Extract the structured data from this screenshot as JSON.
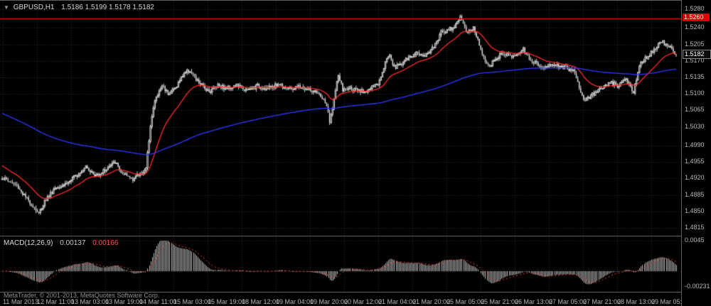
{
  "header": {
    "symbol": "GBPUSD,H1",
    "quote": "1.5186 1.5199 1.5178 1.5182"
  },
  "icons": {
    "chart_shift_marker": "▼"
  },
  "badges": {
    "resistance": "1.5260",
    "last": "1.5182"
  },
  "macd_panel": {
    "title": "MACD(12,26,9)",
    "value_main": "0.00137",
    "value_signal": "0.00166"
  },
  "footer": {
    "copyright": "MetaTrader, © 2001-2013, MetaQuotes Software Corp."
  },
  "chart_data": {
    "type": "candlestick",
    "title": "GBPUSD,H1",
    "ohlc_display": {
      "open": 1.5186,
      "high": 1.5199,
      "low": 1.5178,
      "close": 1.5182
    },
    "y_tick_labels": [
      "1.5280",
      "1.5240",
      "1.5205",
      "1.5170",
      "1.5135",
      "1.5100",
      "1.5065",
      "1.5030",
      "1.4990",
      "1.4955",
      "1.4920",
      "1.4885",
      "1.4850",
      "1.4815"
    ],
    "x_tick_labels": [
      "11 Mar 2013",
      "12 Mar 11:00",
      "13 Mar 03:00",
      "13 Mar 19:00",
      "14 Mar 11:00",
      "15 Mar 03:00",
      "15 Mar 19:00",
      "18 Mar 12:00",
      "19 Mar 04:00",
      "19 Mar 20:00",
      "20 Mar 12:00",
      "21 Mar 04:00",
      "21 Mar 20:00",
      "25 Mar 05:00",
      "25 Mar 21:00",
      "26 Mar 13:00",
      "27 Mar 05:00",
      "27 Mar 21:00",
      "28 Mar 13:00",
      "29 Mar 05:00"
    ],
    "ylim": [
      1.4815,
      1.528
    ],
    "grid": true,
    "candle_count": 460,
    "last_price": 1.5182,
    "close_path_anchors": [
      [
        0,
        1.4922
      ],
      [
        10,
        1.4905
      ],
      [
        16,
        1.488
      ],
      [
        22,
        1.4858
      ],
      [
        25,
        1.4845
      ],
      [
        29,
        1.4872
      ],
      [
        36,
        1.49
      ],
      [
        45,
        1.4912
      ],
      [
        52,
        1.493
      ],
      [
        57,
        1.4948
      ],
      [
        63,
        1.4925
      ],
      [
        70,
        1.4938
      ],
      [
        77,
        1.4955
      ],
      [
        82,
        1.4928
      ],
      [
        89,
        1.492
      ],
      [
        95,
        1.4932
      ],
      [
        98,
        1.494
      ],
      [
        101,
        1.5035
      ],
      [
        104,
        1.5085
      ],
      [
        109,
        1.5118
      ],
      [
        113,
        1.5102
      ],
      [
        118,
        1.5112
      ],
      [
        124,
        1.5145
      ],
      [
        128,
        1.515
      ],
      [
        132,
        1.513
      ],
      [
        138,
        1.5112
      ],
      [
        142,
        1.5106
      ],
      [
        147,
        1.512
      ],
      [
        152,
        1.5112
      ],
      [
        160,
        1.5118
      ],
      [
        167,
        1.5107
      ],
      [
        174,
        1.5117
      ],
      [
        181,
        1.5111
      ],
      [
        188,
        1.5121
      ],
      [
        196,
        1.511
      ],
      [
        203,
        1.5115
      ],
      [
        210,
        1.5107
      ],
      [
        217,
        1.5096
      ],
      [
        221,
        1.5075
      ],
      [
        223,
        1.5038
      ],
      [
        226,
        1.5088
      ],
      [
        229,
        1.514
      ],
      [
        232,
        1.5108
      ],
      [
        237,
        1.5112
      ],
      [
        244,
        1.5104
      ],
      [
        249,
        1.5108
      ],
      [
        256,
        1.5121
      ],
      [
        261,
        1.5168
      ],
      [
        264,
        1.5185
      ],
      [
        266,
        1.5163
      ],
      [
        268,
        1.5157
      ],
      [
        275,
        1.5172
      ],
      [
        283,
        1.5188
      ],
      [
        287,
        1.5179
      ],
      [
        295,
        1.5203
      ],
      [
        299,
        1.5232
      ],
      [
        307,
        1.5241
      ],
      [
        312,
        1.5262
      ],
      [
        316,
        1.5232
      ],
      [
        321,
        1.524
      ],
      [
        326,
        1.5196
      ],
      [
        331,
        1.5157
      ],
      [
        336,
        1.5172
      ],
      [
        341,
        1.5188
      ],
      [
        348,
        1.5179
      ],
      [
        355,
        1.5195
      ],
      [
        360,
        1.5172
      ],
      [
        367,
        1.5157
      ],
      [
        374,
        1.5162
      ],
      [
        382,
        1.5157
      ],
      [
        389,
        1.515
      ],
      [
        394,
        1.5104
      ],
      [
        397,
        1.5085
      ],
      [
        401,
        1.5096
      ],
      [
        408,
        1.5112
      ],
      [
        415,
        1.5123
      ],
      [
        420,
        1.5117
      ],
      [
        425,
        1.513
      ],
      [
        430,
        1.5104
      ],
      [
        434,
        1.5163
      ],
      [
        442,
        1.5188
      ],
      [
        449,
        1.5212
      ],
      [
        454,
        1.52
      ],
      [
        459,
        1.5182
      ]
    ],
    "colors": {
      "background": "#000000",
      "grid": "#2e2e2e",
      "bull_fill": "#000000",
      "bull_border": "#d4d4d4",
      "bear_fill": "#d4d4d4",
      "wick": "#d4d4d4"
    },
    "overlays": [
      {
        "name": "ma-fast",
        "type": "EMA",
        "period": 24,
        "seed": 1.495,
        "color": "#ff2a2a"
      },
      {
        "name": "ma-slow",
        "type": "EMA",
        "period": 200,
        "seed": 1.506,
        "color": "#3038ff"
      }
    ],
    "hlines": [
      {
        "price": 1.526,
        "color": "#e00000",
        "label": "1.5260"
      }
    ],
    "indicator": {
      "type": "MACD",
      "fast": 12,
      "slow": 26,
      "signal": 9,
      "display_values": [
        0.00137,
        0.00166
      ],
      "scale_max": 0.0045,
      "scale_min": -0.00231,
      "axis_labels": [
        "0.0045",
        "-0.00231"
      ],
      "histogram_color": "#bdbdbd",
      "signal_color": "#ff4040"
    }
  }
}
